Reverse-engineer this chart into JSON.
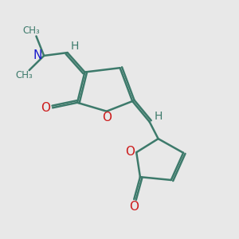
{
  "bg_color": "#e8e8e8",
  "bond_color": "#3d7a6b",
  "N_color": "#1a1acc",
  "O_color": "#cc1a1a",
  "H_color": "#3d7a6b",
  "line_width": 1.8,
  "fig_width": 3.0,
  "fig_height": 3.0,
  "dpi": 100,
  "xlim": [
    0,
    10
  ],
  "ylim": [
    0,
    10
  ]
}
